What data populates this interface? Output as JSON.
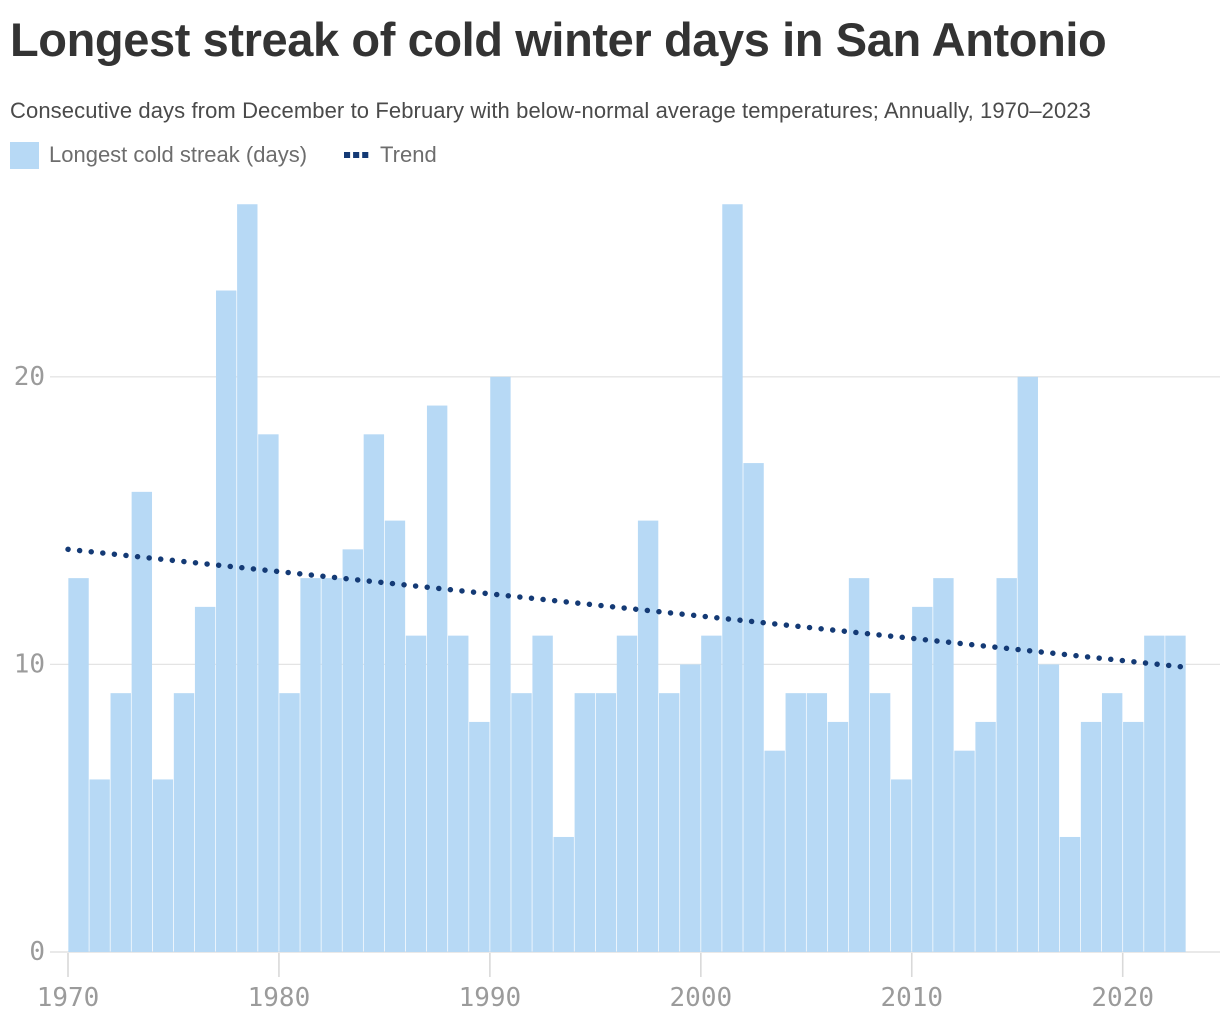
{
  "header": {
    "title": "Longest streak of cold winter days in San Antonio",
    "subtitle": "Consecutive days from December to February with below-normal average temperatures; Annually, 1970–2023"
  },
  "legend": {
    "series_label": "Longest cold streak (days)",
    "trend_label": "Trend"
  },
  "colors": {
    "bar": "#b7d9f5",
    "trend": "#143a75",
    "gridline": "#e4e4e4",
    "baseline": "#dcdcdc",
    "tick": "#d9d9d9",
    "axis_text": "#9b9b9b",
    "title_text": "#333333",
    "subtitle_text": "#4a4a4a",
    "legend_text": "#6d6d6d"
  },
  "chart_data": {
    "type": "bar",
    "title": "Longest streak of cold winter days in San Antonio",
    "subtitle": "Consecutive days from December to February with below-normal average temperatures; Annually, 1970–2023",
    "xlabel": "",
    "ylabel": "",
    "series_name": "Longest cold streak (days)",
    "x": [
      1970,
      1971,
      1972,
      1973,
      1974,
      1975,
      1976,
      1977,
      1978,
      1979,
      1980,
      1981,
      1982,
      1983,
      1984,
      1985,
      1986,
      1987,
      1988,
      1989,
      1990,
      1991,
      1992,
      1993,
      1994,
      1995,
      1996,
      1997,
      1998,
      1999,
      2000,
      2001,
      2002,
      2003,
      2004,
      2005,
      2006,
      2007,
      2008,
      2009,
      2010,
      2011,
      2012,
      2013,
      2014,
      2015,
      2016,
      2017,
      2018,
      2019,
      2020,
      2021,
      2022
    ],
    "values": [
      13,
      6,
      9,
      16,
      6,
      9,
      12,
      23,
      26,
      18,
      9,
      13,
      13,
      14,
      18,
      15,
      11,
      19,
      11,
      8,
      20,
      9,
      11,
      4,
      9,
      9,
      11,
      15,
      9,
      10,
      11,
      26,
      17,
      7,
      9,
      9,
      8,
      13,
      9,
      6,
      12,
      13,
      7,
      8,
      13,
      20,
      10,
      4,
      8,
      9,
      8,
      11,
      11
    ],
    "trend": {
      "name": "Trend",
      "style": "dotted",
      "start_year": 1970,
      "start_value": 14.0,
      "end_year": 2022,
      "end_value": 9.9
    },
    "x_ticks": [
      1970,
      1980,
      1990,
      2000,
      2010,
      2020
    ],
    "y_ticks": [
      0,
      10,
      20
    ],
    "ylim": [
      0,
      26
    ],
    "grid": "horizontal",
    "legend_position": "top-left"
  }
}
